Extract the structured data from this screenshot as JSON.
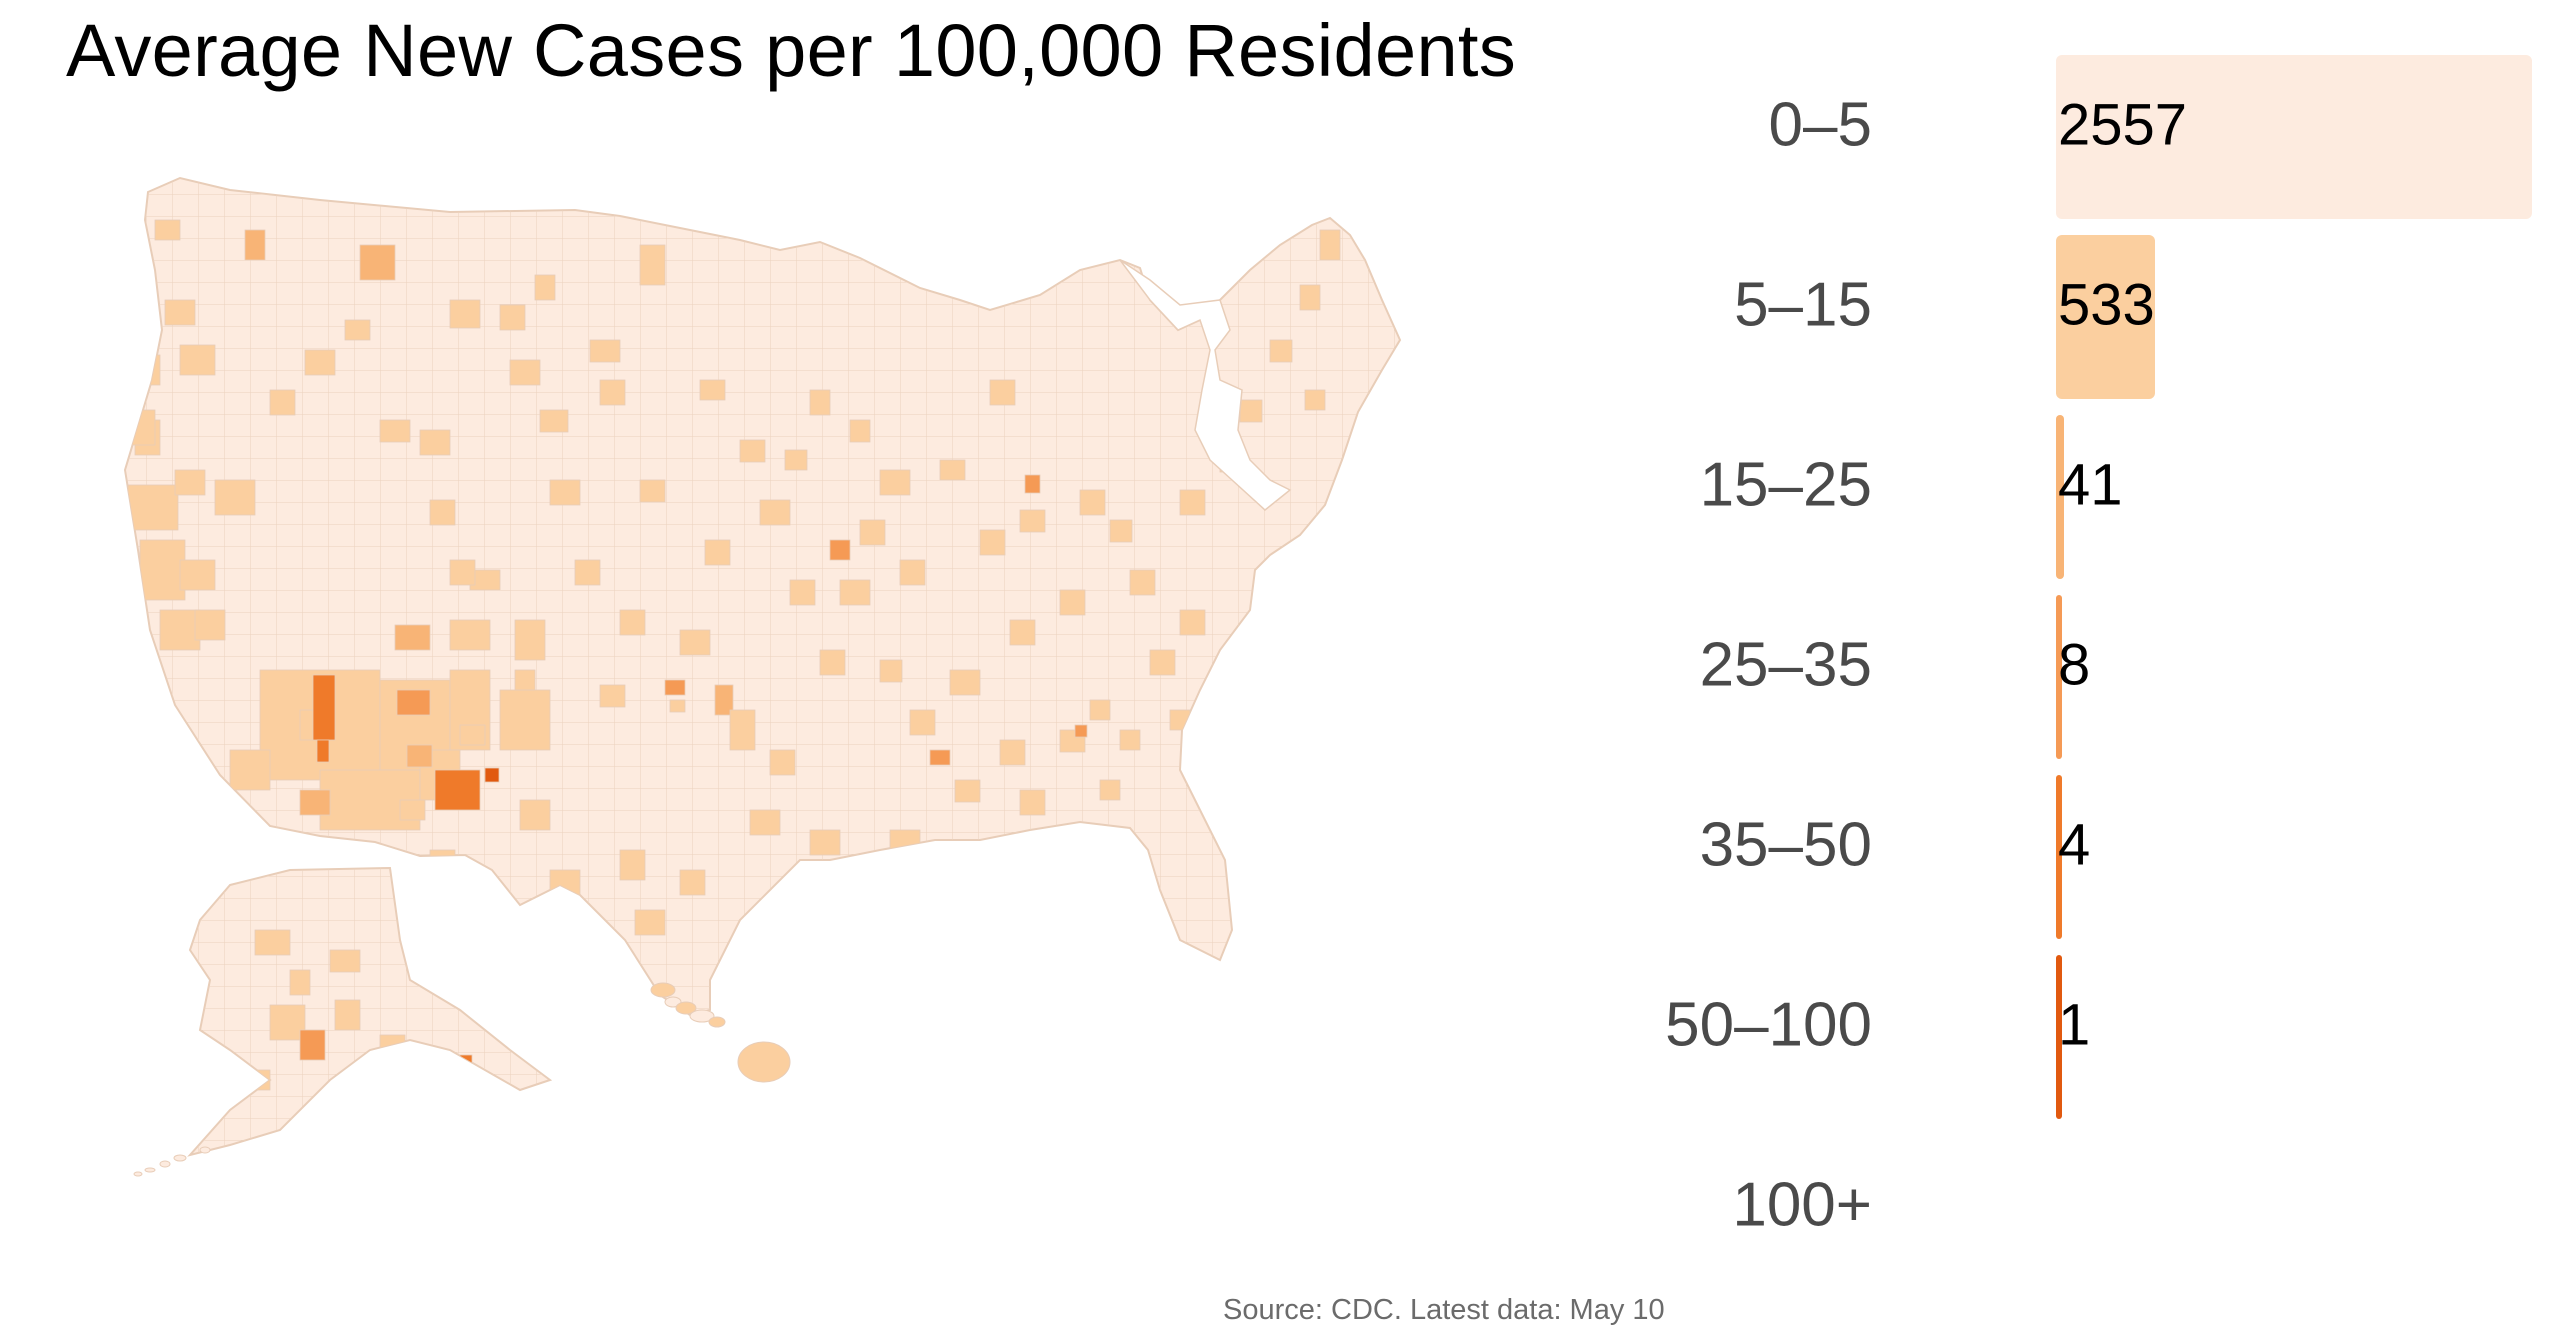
{
  "title": "Average New Cases per 100,000 Residents",
  "source": "Source: CDC. Latest data: May 10",
  "colors": {
    "base": "#fdebdf",
    "border": "#e8cdb8",
    "bin_0_5": "#fdebdf",
    "bin_5_15": "#fbcf9f",
    "bin_15_25": "#f8b476",
    "bin_25_35": "#f59a55",
    "bin_35_50": "#ef7a2a",
    "bin_50_100": "#e1590f",
    "bin_100_plus": "#b84006"
  },
  "chart_data": {
    "type": "bar",
    "orientation": "horizontal",
    "categories": [
      "0–5",
      "5–15",
      "15–25",
      "25–35",
      "35–50",
      "50–100",
      "100+"
    ],
    "values": [
      2557,
      533,
      41,
      8,
      4,
      1,
      0
    ],
    "labels": [
      "2557",
      "533",
      "41",
      "8",
      "4",
      "1",
      ""
    ],
    "bar_colors": [
      "#fdebdf",
      "#fbcf9f",
      "#f8b476",
      "#f59a55",
      "#ef7a2a",
      "#e1590f",
      "#b84006"
    ],
    "xlim": [
      0,
      2557
    ]
  }
}
